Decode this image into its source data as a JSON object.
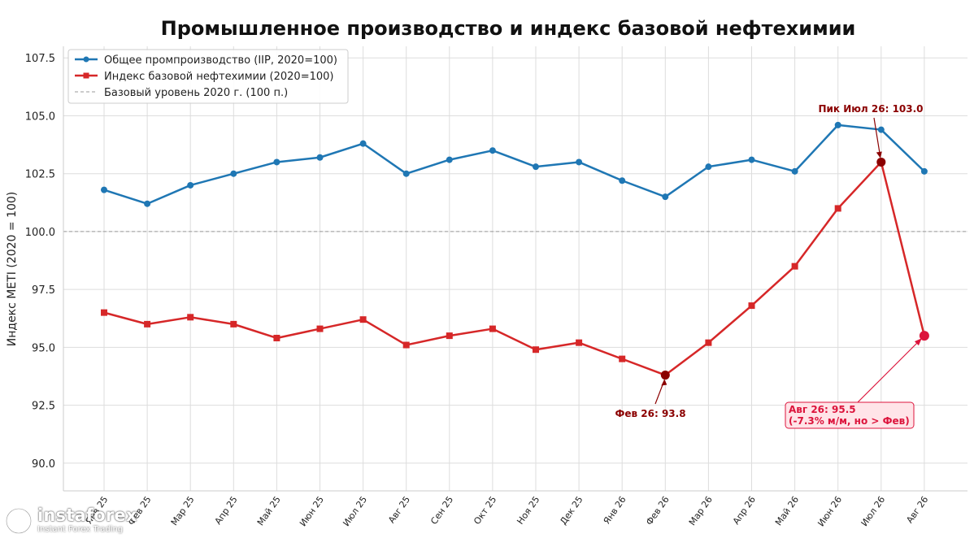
{
  "chart_data": {
    "type": "line",
    "title": "Промышленное производство и индекс базовой нефтехимии",
    "ylabel": "Индекс METI (2020 = 100)",
    "xlabel": "",
    "ylim": [
      88.8,
      108.0
    ],
    "yticks": [
      90.0,
      92.5,
      95.0,
      97.5,
      100.0,
      102.5,
      105.0,
      107.5
    ],
    "ytick_labels": [
      "90.0",
      "92.5",
      "95.0",
      "97.5",
      "100.0",
      "102.5",
      "105.0",
      "107.5"
    ],
    "categories": [
      "Янв 25",
      "Фев 25",
      "Мар 25",
      "Апр 25",
      "Май 25",
      "Июн 25",
      "Июл 25",
      "Авг 25",
      "Сен 25",
      "Окт 25",
      "Ноя 25",
      "Дек 25",
      "Янв 26",
      "Фев 26",
      "Мар 26",
      "Апр 26",
      "Май 26",
      "Июн 26",
      "Июл 26",
      "Авг 26"
    ],
    "grid": true,
    "legend_position": "top-left",
    "series": [
      {
        "name": "Общее промпроизводство (IIP, 2020=100)",
        "color": "#1f77b4",
        "marker": "circle",
        "values": [
          101.8,
          101.2,
          102.0,
          102.5,
          103.0,
          103.2,
          103.8,
          102.5,
          103.1,
          103.5,
          102.8,
          103.0,
          102.2,
          101.5,
          102.8,
          103.1,
          102.6,
          104.6,
          104.4,
          102.6
        ]
      },
      {
        "name": "Индекс базовой нефтехимии (2020=100)",
        "color": "#d62728",
        "marker": "square",
        "values": [
          96.5,
          96.0,
          96.3,
          96.0,
          95.4,
          95.8,
          96.2,
          95.1,
          95.5,
          95.8,
          94.9,
          95.2,
          94.5,
          93.8,
          95.2,
          96.8,
          98.5,
          101.0,
          103.0,
          95.5
        ]
      }
    ],
    "reference_line": {
      "name": "Базовый уровень 2020 г. (100 п.)",
      "value": 100.0,
      "color": "#999999"
    },
    "annotations": [
      {
        "id": "trough",
        "point_index": 13,
        "value": 93.8,
        "text": "Фев 26: 93.8",
        "color": "#8b0000",
        "marker_color": "#8b0000"
      },
      {
        "id": "peak",
        "point_index": 18,
        "value": 103.0,
        "text": "Пик Июл 26: 103.0",
        "color": "#8b0000",
        "marker_color": "#8b0000"
      },
      {
        "id": "last",
        "point_index": 19,
        "value": 95.5,
        "line1": "Авг 26: 95.5",
        "line2": "(-7.3% м/м, но > Фев)",
        "color": "#dc143c",
        "marker_color": "#dc143c",
        "box_fill": "#ffe4e8"
      }
    ]
  },
  "watermark": {
    "brand": "instaforex",
    "tagline": "Instant Forex Trading"
  }
}
